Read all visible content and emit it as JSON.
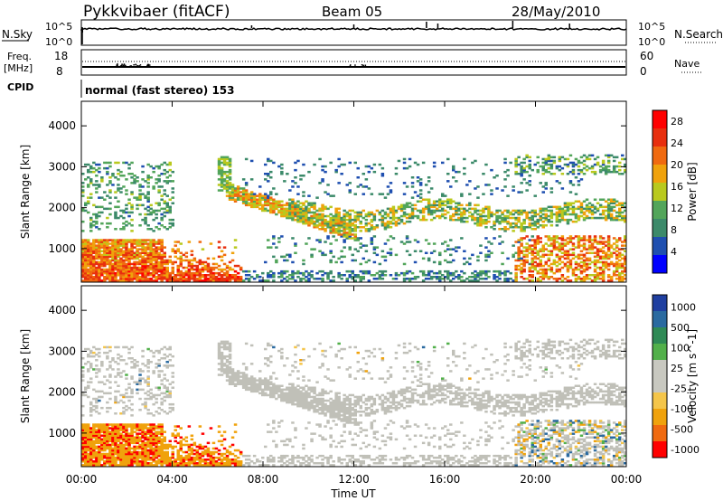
{
  "header": {
    "radar": "Pykkvibaer (fitACF)",
    "beam": "Beam 05",
    "date": "28/May/2010"
  },
  "nsky_panel": {
    "left_label": "N.Sky",
    "left_ticks": [
      "10^5",
      "10^0"
    ],
    "right_label": "N.Search",
    "right_ticks": [
      "10^5",
      "10^0"
    ]
  },
  "freq_panel": {
    "left_label_1": "Freq.",
    "left_label_2": "[MHz]",
    "left_ticks": [
      "18",
      "8"
    ],
    "right_label": "Nave",
    "right_ticks": [
      "60",
      "0"
    ]
  },
  "cpid": {
    "label": "CPID",
    "value": "normal (fast stereo) 153"
  },
  "colors": {
    "power_scale": [
      "#0000ff",
      "#1f4fb0",
      "#3c8a6a",
      "#52a55a",
      "#b9c91e",
      "#f0a20c",
      "#f06a10",
      "#e82f0e",
      "#ff0000"
    ],
    "velocity_scale": [
      "#ff0000",
      "#f06a10",
      "#f0a20c",
      "#f4c54a",
      "#c8c8c0",
      "#c8c8c0",
      "#52b04a",
      "#2f8a55",
      "#2a6aa0",
      "#1f3fa0"
    ],
    "ground_scatter": "#c0c0b8"
  },
  "chart_data": [
    {
      "type": "heatmap",
      "title": "",
      "xlabel": "",
      "ylabel": "Slant Range [km]",
      "x_ticks": [
        "00:00",
        "04:00",
        "08:00",
        "12:00",
        "16:00",
        "20:00",
        "00:00"
      ],
      "y_ticks": [
        "1000",
        "2000",
        "3000",
        "4000"
      ],
      "xlim_hours": [
        0,
        24
      ],
      "ylim_km": [
        180,
        4600
      ],
      "colorbar": {
        "label": "Power [dB]",
        "ticks": [
          "4",
          "8",
          "12",
          "16",
          "20",
          "24",
          "28"
        ],
        "range": [
          0,
          30
        ]
      },
      "features": [
        {
          "region": "strong E/F near range",
          "time_h": [
            0,
            7
          ],
          "range_km": [
            200,
            1200
          ],
          "power_db": 26
        },
        {
          "region": "descending trace",
          "time_h": [
            6.3,
            11
          ],
          "range_km": [
            1600,
            2400
          ],
          "power_db": 18
        },
        {
          "region": "F-region band",
          "time_h": [
            9,
            20
          ],
          "range_km": [
            1500,
            2200
          ],
          "power_db": 14
        },
        {
          "region": "evening band",
          "time_h": [
            19,
            24
          ],
          "range_km": [
            1500,
            2000
          ],
          "power_db": 20
        },
        {
          "region": "late near range",
          "time_h": [
            19,
            24
          ],
          "range_km": [
            200,
            1200
          ],
          "power_db": 22
        }
      ]
    },
    {
      "type": "heatmap",
      "title": "",
      "xlabel": "Time UT",
      "ylabel": "Slant Range [km]",
      "x_ticks": [
        "00:00",
        "04:00",
        "08:00",
        "12:00",
        "16:00",
        "20:00",
        "00:00"
      ],
      "y_ticks": [
        "1000",
        "2000",
        "3000",
        "4000"
      ],
      "xlim_hours": [
        0,
        24
      ],
      "ylim_km": [
        180,
        4600
      ],
      "colorbar": {
        "label": "Velocity [m s^-1]",
        "ticks": [
          "1000",
          "500",
          "100",
          "25",
          "-25",
          "-100",
          "-500",
          "-1000"
        ],
        "range": [
          -1000,
          1000
        ]
      },
      "features": [
        {
          "region": "ground scatter",
          "time_h": [
            0,
            24
          ],
          "range_km": [
            300,
            3200
          ],
          "velocity": 0
        },
        {
          "region": "receding flow",
          "time_h": [
            0,
            7
          ],
          "range_km": [
            300,
            1300
          ],
          "velocity": -300
        }
      ]
    }
  ]
}
